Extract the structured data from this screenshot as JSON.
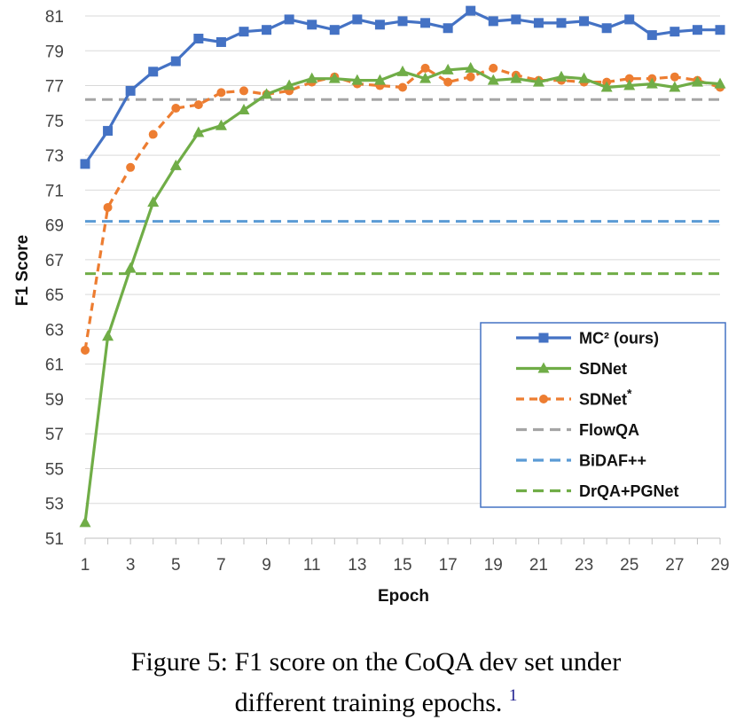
{
  "chart_data": {
    "type": "line",
    "xlabel": "Epoch",
    "ylabel": "F1 Score",
    "xlim": [
      1,
      29
    ],
    "ylim": [
      51,
      81
    ],
    "x_ticks": [
      1,
      3,
      5,
      7,
      9,
      11,
      13,
      15,
      17,
      19,
      21,
      23,
      25,
      27,
      29
    ],
    "y_ticks": [
      51,
      53,
      55,
      57,
      59,
      61,
      63,
      65,
      67,
      69,
      71,
      73,
      75,
      77,
      79,
      81
    ],
    "grid": "horizontal",
    "legend_position": "bottom-right",
    "x": [
      1,
      2,
      3,
      4,
      5,
      6,
      7,
      8,
      9,
      10,
      11,
      12,
      13,
      14,
      15,
      16,
      17,
      18,
      19,
      20,
      21,
      22,
      23,
      24,
      25,
      26,
      27,
      28,
      29
    ],
    "series": [
      {
        "name": "MC² (ours)",
        "color": "#4472c4",
        "style": "solid",
        "marker": "square",
        "values": [
          72.5,
          74.4,
          76.7,
          77.8,
          78.4,
          79.7,
          79.5,
          80.1,
          80.2,
          80.8,
          80.5,
          80.2,
          80.8,
          80.5,
          80.7,
          80.6,
          80.3,
          81.3,
          80.7,
          80.8,
          80.6,
          80.6,
          80.7,
          80.3,
          80.8,
          79.9,
          80.1,
          80.2,
          80.2
        ]
      },
      {
        "name": "SDNet",
        "color": "#70ad47",
        "style": "solid",
        "marker": "triangle",
        "values": [
          51.9,
          62.6,
          66.5,
          70.3,
          72.4,
          74.3,
          74.7,
          75.6,
          76.5,
          77.0,
          77.4,
          77.4,
          77.3,
          77.3,
          77.8,
          77.4,
          77.9,
          78.0,
          77.3,
          77.4,
          77.2,
          77.5,
          77.4,
          76.9,
          77.0,
          77.1,
          76.9,
          77.2,
          77.1
        ]
      },
      {
        "name": "SDNet",
        "name_sup": "*",
        "color": "#ed7d31",
        "style": "dashed",
        "marker": "circle",
        "values": [
          61.8,
          70.0,
          72.3,
          74.2,
          75.7,
          75.9,
          76.6,
          76.7,
          76.5,
          76.7,
          77.2,
          77.5,
          77.1,
          77.0,
          76.9,
          78.0,
          77.2,
          77.5,
          78.0,
          77.6,
          77.3,
          77.3,
          77.2,
          77.2,
          77.4,
          77.4,
          77.5,
          77.3,
          76.9
        ]
      },
      {
        "name": "FlowQA",
        "color": "#a5a5a5",
        "style": "dashed",
        "marker": "none",
        "constant": 76.2
      },
      {
        "name": "BiDAF++",
        "color": "#5b9bd5",
        "style": "dashed",
        "marker": "none",
        "constant": 69.2
      },
      {
        "name": "DrQA+PGNet",
        "color": "#70ad47",
        "style": "dashed",
        "marker": "none",
        "constant": 66.2
      }
    ]
  },
  "caption": {
    "line1": "Figure 5: F1 score on the CoQA dev set under",
    "line2": "different training epochs.",
    "footnote": "1"
  }
}
